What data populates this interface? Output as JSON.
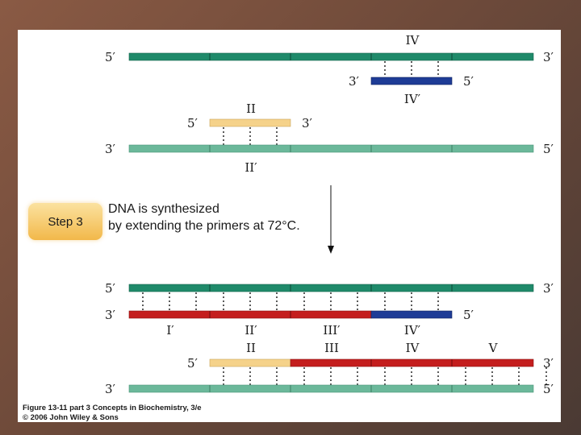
{
  "caption": {
    "line1": "Figure 13-11 part 3  Concepts in Biochemistry, 3/e",
    "line2": "© 2006 John Wiley & Sons"
  },
  "step": {
    "label": "Step 3",
    "text_line1": "DNA is synthesized",
    "text_line2": "by extending the primers at 72°C."
  },
  "end_labels": {
    "five_prime": "5′",
    "three_prime": "3′"
  },
  "top_labels": {
    "primer_IV": "IV",
    "primer_IV_prime": "IV′",
    "primer_II": "II",
    "primer_II_prime": "II′"
  },
  "bottom_labels": {
    "I_prime": "I′",
    "II_prime": "II′",
    "III_prime": "III′",
    "IV_prime": "IV′",
    "II": "II",
    "III": "III",
    "IV": "IV",
    "V": "V"
  },
  "colors": {
    "strand_dark_green": "#1f8a6a",
    "strand_light_green": "#6bb89a",
    "primer_blue": "#1e3c96",
    "primer_yellow": "#f5d28a",
    "new_strand_red": "#c41e1e",
    "step_box": "#f7cc6a"
  }
}
